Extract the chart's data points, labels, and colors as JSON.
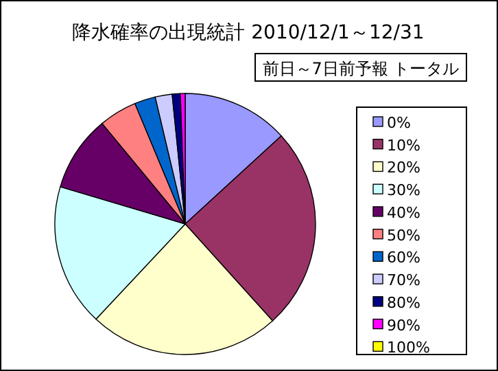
{
  "chart_data": {
    "type": "pie",
    "title": "降水確率の出現統計 2010/12/1～12/31",
    "subtitle": "前日～7日前予報 トータル",
    "categories": [
      "0%",
      "10%",
      "20%",
      "30%",
      "40%",
      "50%",
      "60%",
      "70%",
      "80%",
      "90%",
      "100%"
    ],
    "values": [
      13.2,
      25.1,
      23.7,
      17.6,
      9.4,
      4.7,
      2.6,
      2.1,
      1.0,
      0.6,
      0
    ],
    "colors": [
      "#9999ff",
      "#993366",
      "#ffffcc",
      "#ccffff",
      "#660066",
      "#ff8080",
      "#0066cc",
      "#ccccff",
      "#000080",
      "#ff00ff",
      "#ffff00"
    ],
    "legend": "right"
  }
}
